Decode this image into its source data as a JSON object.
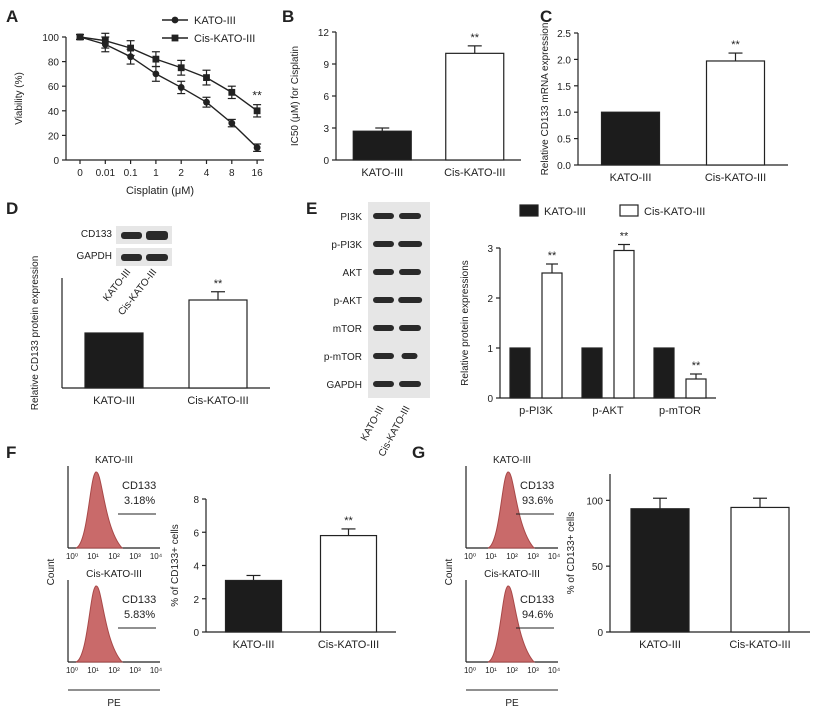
{
  "colors": {
    "dark_bar": "#1c1c1c",
    "light_bar": "#ffffff",
    "histogram": "#c96a6a",
    "blot_bg": "#e6e6e6",
    "band": "#2a2a2a"
  },
  "panels": {
    "A": {
      "letter": "A"
    },
    "B": {
      "letter": "B"
    },
    "C": {
      "letter": "C"
    },
    "D": {
      "letter": "D",
      "blot_labels": [
        "CD133",
        "GAPDH"
      ],
      "lane_labels": [
        "KATO-III",
        "Cis-KATO-III"
      ]
    },
    "E": {
      "letter": "E",
      "blot_labels": [
        "PI3K",
        "p-PI3K",
        "AKT",
        "p-AKT",
        "mTOR",
        "p-mTOR",
        "GAPDH"
      ],
      "lane_labels": [
        "KATO-III",
        "Cis-KATO-III"
      ]
    },
    "F": {
      "letter": "F",
      "hist_axis_label": "PE",
      "hist_count_label": "Count",
      "hist_top_title": "KATO-III",
      "hist_bottom_title": "Cis-KATO-III",
      "gate_name": "CD133",
      "gate_top_value": "3.18%",
      "gate_bottom_value": "5.83%",
      "hist_ticks": [
        "10⁰",
        "10¹",
        "10²",
        "10³",
        "10⁴"
      ]
    },
    "G": {
      "letter": "G",
      "hist_axis_label": "PE",
      "hist_count_label": "Count",
      "hist_top_title": "KATO-III",
      "hist_bottom_title": "Cis-KATO-III",
      "gate_name": "CD133",
      "gate_top_value": "93.6%",
      "gate_bottom_value": "94.6%",
      "hist_ticks": [
        "10⁰",
        "10¹",
        "10²",
        "10³",
        "10⁴"
      ]
    }
  },
  "chart_data": [
    {
      "panel": "A",
      "type": "line",
      "xlabel": "Cisplatin (μM)",
      "ylabel": "Viability (%)",
      "categories": [
        "0",
        "0.01",
        "0.1",
        "1",
        "2",
        "4",
        "8",
        "16"
      ],
      "ylim": [
        0,
        100
      ],
      "yticks": [
        0,
        20,
        40,
        60,
        80,
        100
      ],
      "series": [
        {
          "name": "KATO-III",
          "marker": "circle",
          "values": [
            100,
            94,
            84,
            70,
            59,
            47,
            30,
            10
          ],
          "errors": [
            2,
            6,
            6,
            6,
            5,
            4,
            3,
            3
          ]
        },
        {
          "name": "Cis-KATO-III",
          "marker": "square",
          "values": [
            100,
            97,
            91,
            82,
            75,
            67,
            55,
            40
          ],
          "errors": [
            2,
            6,
            6,
            6,
            6,
            6,
            5,
            5
          ]
        }
      ],
      "annotations": [
        {
          "text": "**",
          "category": "16"
        }
      ]
    },
    {
      "panel": "B",
      "type": "bar",
      "ylabel": "IC50 (μM) for Cisplatin",
      "categories": [
        "KATO-III",
        "Cis-KATO-III"
      ],
      "values": [
        2.7,
        10.0
      ],
      "errors": [
        0.3,
        0.7
      ],
      "ylim": [
        0,
        12
      ],
      "yticks": [
        0,
        3,
        6,
        9,
        12
      ],
      "significance": [
        "",
        "**"
      ]
    },
    {
      "panel": "C",
      "type": "bar",
      "ylabel": "Relative CD133 mRNA expression",
      "categories": [
        "KATO-III",
        "Cis-KATO-III"
      ],
      "values": [
        1.0,
        1.97
      ],
      "errors": [
        0,
        0.15
      ],
      "ylim": [
        0,
        2.5
      ],
      "yticks": [
        "0.0",
        "0.5",
        "1.0",
        "1.5",
        "2.0",
        "2.5"
      ],
      "significance": [
        "",
        "**"
      ]
    },
    {
      "panel": "D",
      "type": "bar",
      "ylabel": "Relative CD133 protein expression",
      "categories": [
        "KATO-III",
        "Cis-KATO-III"
      ],
      "values": [
        1.0,
        1.6
      ],
      "errors": [
        0,
        0.15
      ],
      "ylim": [
        0,
        2.0
      ],
      "significance": [
        "",
        "**"
      ]
    },
    {
      "panel": "E",
      "type": "bar",
      "ylabel": "Relative protein expressions",
      "categories": [
        "p-PI3K",
        "p-AKT",
        "p-mTOR"
      ],
      "series": [
        {
          "name": "KATO-III",
          "values": [
            1.0,
            1.0,
            1.0
          ],
          "errors": [
            0,
            0,
            0
          ]
        },
        {
          "name": "Cis-KATO-III",
          "values": [
            2.5,
            2.95,
            0.38
          ],
          "errors": [
            0.18,
            0.12,
            0.1
          ]
        }
      ],
      "ylim": [
        0,
        3
      ],
      "yticks": [
        0,
        1,
        2,
        3
      ],
      "significance": [
        "**",
        "**",
        "**"
      ],
      "legend": "top"
    },
    {
      "panel": "F",
      "type": "bar",
      "ylabel": "% of CD133+ cells",
      "categories": [
        "KATO-III",
        "Cis-KATO-III"
      ],
      "values": [
        3.1,
        5.8
      ],
      "errors": [
        0.3,
        0.4
      ],
      "ylim": [
        0,
        8
      ],
      "yticks": [
        0,
        2,
        4,
        6,
        8
      ],
      "significance": [
        "",
        "**"
      ]
    },
    {
      "panel": "G",
      "type": "bar",
      "ylabel": "% of CD133+ cells",
      "categories": [
        "KATO-III",
        "Cis-KATO-III"
      ],
      "values": [
        93.6,
        94.6
      ],
      "errors": [
        8,
        7
      ],
      "ylim": [
        0,
        120
      ],
      "yticks": [
        0,
        50,
        100
      ],
      "significance": [
        "",
        ""
      ]
    }
  ]
}
